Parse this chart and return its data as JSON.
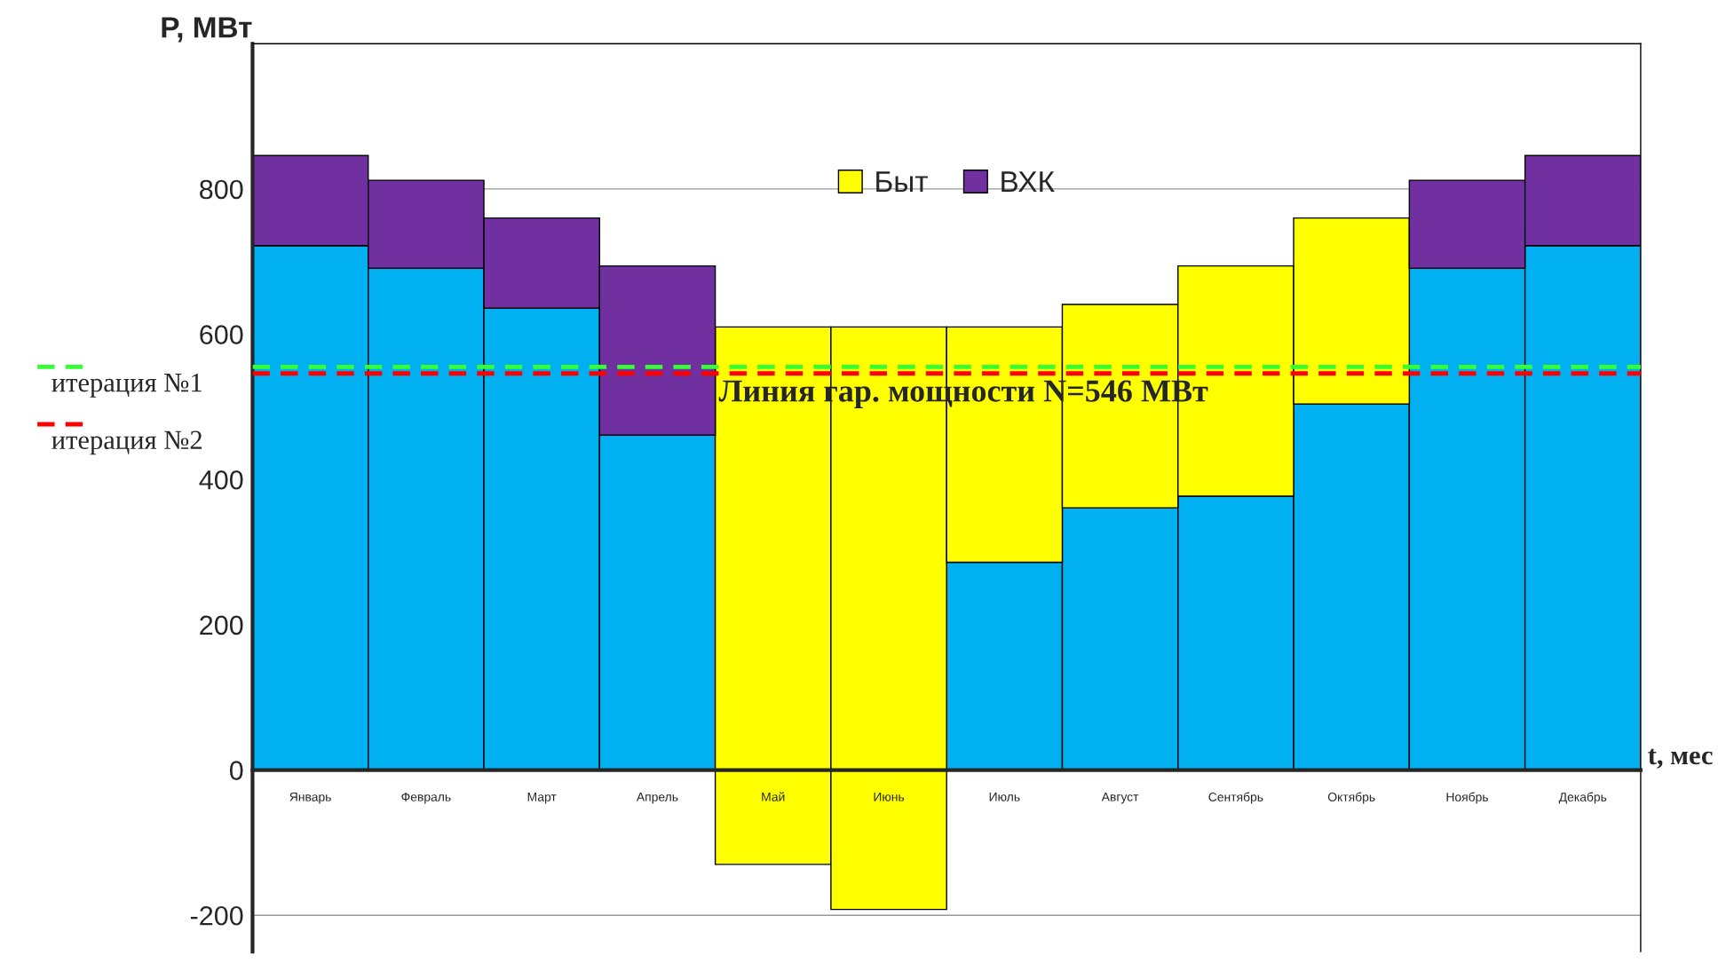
{
  "chart_data": {
    "type": "bar",
    "stacked": true,
    "ylabel": "P, МВт",
    "xlabel": "t, мес",
    "categories": [
      "Январь",
      "Февраль",
      "Март",
      "Апрель",
      "Май",
      "Июнь",
      "Июль",
      "Август",
      "Сентябрь",
      "Октябрь",
      "Ноябрь",
      "Декабрь"
    ],
    "series": [
      {
        "color": "#00b0f0",
        "values": [
          722,
          691,
          636,
          461,
          null,
          null,
          286,
          361,
          377,
          504,
          691,
          722
        ]
      },
      {
        "name": "Быт",
        "color": "#ffff00",
        "values": [
          null,
          null,
          null,
          null,
          740,
          802,
          324,
          280,
          317,
          256,
          null,
          null
        ],
        "base": [
          null,
          null,
          null,
          null,
          -130,
          -192,
          null,
          null,
          null,
          null,
          null,
          null
        ]
      },
      {
        "name": "ВХК",
        "color": "#7030a0",
        "values": [
          124,
          121,
          124,
          233,
          null,
          null,
          null,
          null,
          null,
          null,
          121,
          124
        ]
      }
    ],
    "ylim": [
      -250,
      1000
    ],
    "yticks": [
      -200,
      0,
      200,
      400,
      600,
      800
    ],
    "grid": "y",
    "legend": "top",
    "ref_lines": [
      {
        "axis": "y",
        "value": 555,
        "label": "итерация №1",
        "color": "#33ff33",
        "line_style": "dashed"
      },
      {
        "axis": "y",
        "value": 546,
        "label": "итерация №2",
        "color": "#ff0000",
        "line_style": "dashed"
      }
    ],
    "annotations": [
      "Линия гар. мощности N=546 МВт"
    ]
  }
}
